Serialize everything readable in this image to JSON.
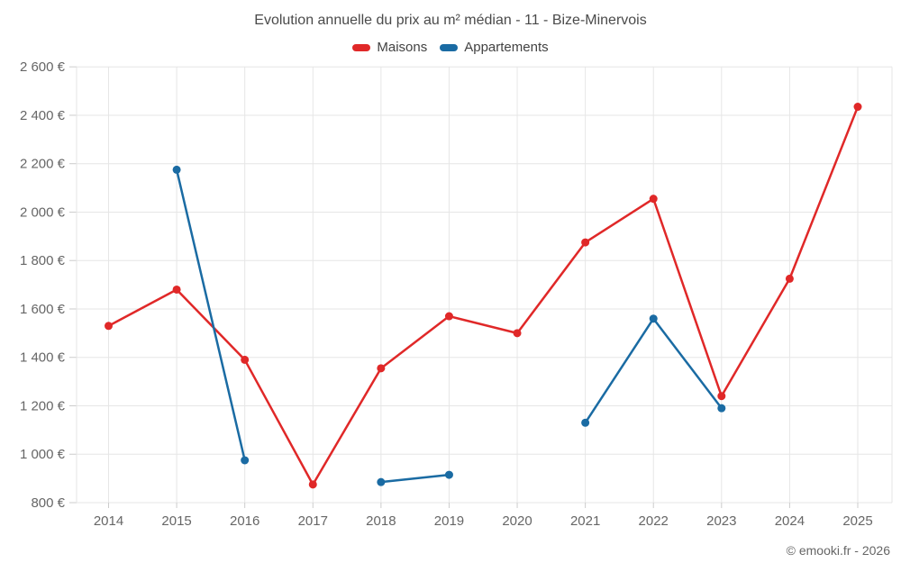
{
  "title": "Evolution annuelle du prix au m² médian - 11 - Bize-Minervois",
  "footer": "© emooki.fr - 2026",
  "colors": {
    "maisons": "#e02828",
    "appartements": "#1a6ba3",
    "grid": "#e6e6e6",
    "tick": "#cccccc",
    "axis_text": "#666666",
    "title_text": "#4a4a4a"
  },
  "chart_data": {
    "type": "line",
    "categories": [
      "2014",
      "2015",
      "2016",
      "2017",
      "2018",
      "2019",
      "2020",
      "2021",
      "2022",
      "2023",
      "2024",
      "2025"
    ],
    "series": [
      {
        "name": "Maisons",
        "color_key": "maisons",
        "values": [
          1530,
          1680,
          1390,
          875,
          1355,
          1570,
          1500,
          1875,
          2055,
          1240,
          1725,
          2435
        ]
      },
      {
        "name": "Appartements",
        "color_key": "appartements",
        "values": [
          null,
          2175,
          975,
          null,
          885,
          915,
          null,
          1130,
          1560,
          1190,
          null,
          null
        ]
      }
    ],
    "title": "Evolution annuelle du prix au m² médian - 11 - Bize-Minervois",
    "xlabel": "",
    "ylabel": "",
    "ylim": [
      800,
      2600
    ],
    "y_ticks": [
      {
        "value": 800,
        "label": "800 €"
      },
      {
        "value": 1000,
        "label": "1 000 €"
      },
      {
        "value": 1200,
        "label": "1 200 €"
      },
      {
        "value": 1400,
        "label": "1 400 €"
      },
      {
        "value": 1600,
        "label": "1 600 €"
      },
      {
        "value": 1800,
        "label": "1 800 €"
      },
      {
        "value": 2000,
        "label": "2 000 €"
      },
      {
        "value": 2200,
        "label": "2 200 €"
      },
      {
        "value": 2400,
        "label": "2 400 €"
      },
      {
        "value": 2600,
        "label": "2 600 €"
      }
    ],
    "grid": true,
    "legend_position": "top-center"
  }
}
